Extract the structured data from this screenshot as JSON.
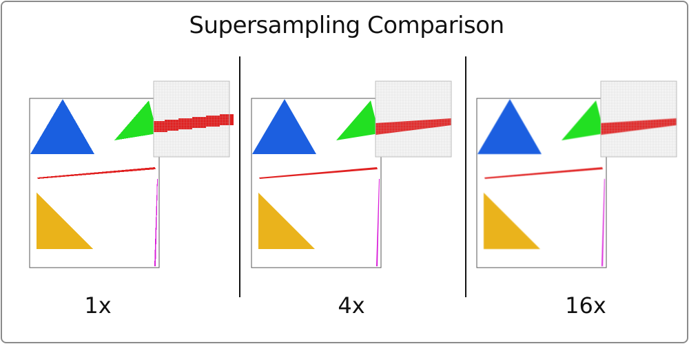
{
  "title": "Supersampling Comparison",
  "panels": [
    {
      "label": "1x",
      "sample_rate": 1
    },
    {
      "label": "4x",
      "sample_rate": 4
    },
    {
      "label": "16x",
      "sample_rate": 16
    }
  ],
  "colors": {
    "frame_border": "#8a8a8a",
    "blue_triangle": "#1a5fe0",
    "green_triangle": "#22e022",
    "red_line": "#e02020",
    "yellow_triangle": "#eab31a",
    "magenta_line": "#d81fd8",
    "zoom_grid": "#c8c8c8"
  }
}
